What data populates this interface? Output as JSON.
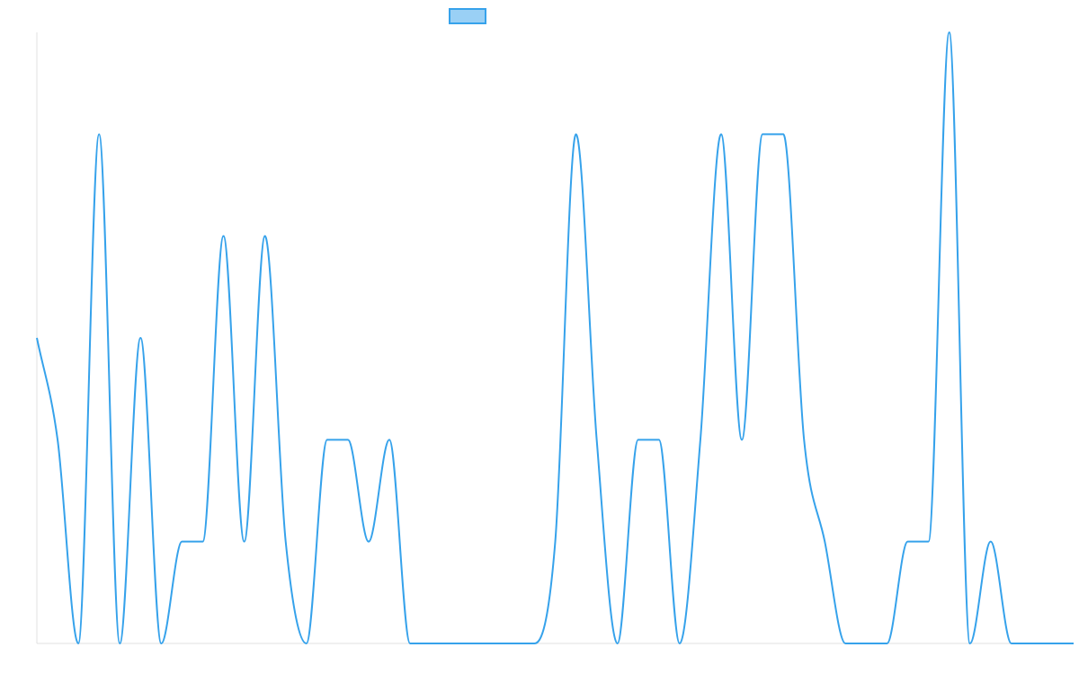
{
  "chart_data": {
    "type": "line",
    "title": "",
    "xlabel": "",
    "ylabel": "",
    "legend": {
      "placement": "top-center",
      "label": ""
    },
    "colors": {
      "line": "#36a2eb",
      "legend_fill": "#9ad0f5",
      "axis": "#e0e0e0"
    },
    "ylim": [
      0,
      6
    ],
    "grid": false,
    "values": [
      3,
      2,
      0,
      5,
      0,
      3,
      0,
      1,
      1,
      4,
      1,
      4,
      1,
      0,
      2,
      2,
      1,
      2,
      0,
      0,
      0,
      0,
      0,
      0,
      0,
      1,
      5,
      2,
      0,
      2,
      2,
      0,
      2,
      5,
      2,
      5,
      5,
      2,
      1,
      0,
      0,
      0,
      1,
      1,
      6,
      0,
      1,
      0,
      0,
      0,
      0
    ]
  }
}
